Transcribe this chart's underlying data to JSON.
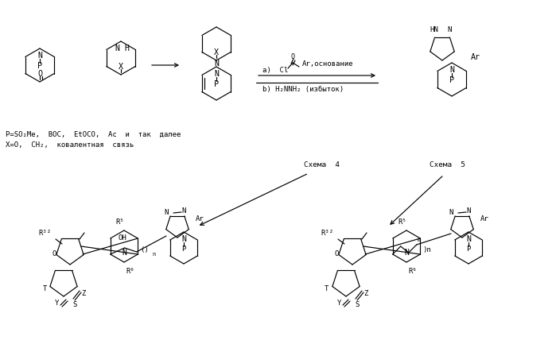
{
  "bg_color": "#ffffff",
  "line_color": "#000000",
  "text_p_def": "P=SO₂Me,  BOC,  EtOCO,  Ac  и  так  далее",
  "text_x_def": "X=O,  CH₂,  ковалентная  связь",
  "text_schema4": "Схема  4",
  "text_schema5": "Схема  5",
  "text_cond_a": "a)  Cl",
  "text_cond_osnov": ",основание",
  "text_cond_b": "b) H₂NNH₂ (избыток)"
}
